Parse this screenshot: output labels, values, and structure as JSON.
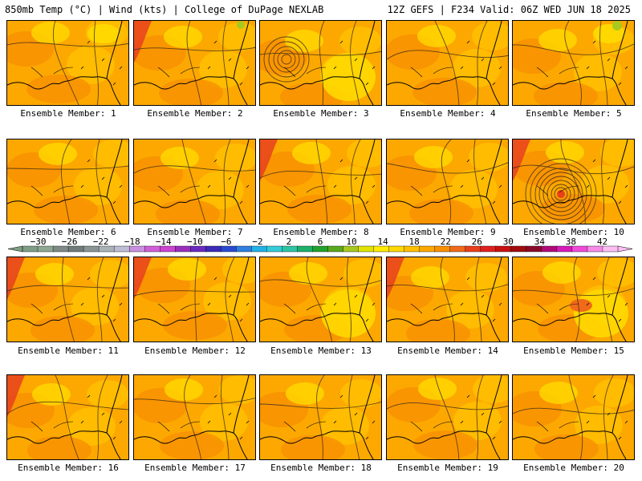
{
  "header": {
    "left": "850mb Temp (°C) | Wind (kts) | College of DuPage NEXLAB",
    "right": "12Z GEFS | F234 Valid: 06Z WED JUN 18 2025"
  },
  "colorbar": {
    "labels": [
      "−30",
      "−26",
      "−22",
      "−18",
      "−14",
      "−10",
      "−6",
      "−2",
      "2",
      "6",
      "10",
      "14",
      "18",
      "22",
      "26",
      "30",
      "34",
      "38",
      "42"
    ],
    "min": -32,
    "max": 44,
    "step": 2,
    "colors": [
      "#7f9e86",
      "#8fa894",
      "#7d8a86",
      "#707c7a",
      "#8a9593",
      "#a9b3b7",
      "#bdbdd3",
      "#c990e0",
      "#d060d8",
      "#cc44d0",
      "#9a2fbe",
      "#6a2ac0",
      "#3b2bb8",
      "#2a4ad2",
      "#2f7fe0",
      "#22b2e6",
      "#33ccd8",
      "#2dc5a4",
      "#1cb06a",
      "#22a22c",
      "#5aa81e",
      "#a8c820",
      "#e0e400",
      "#ffea00",
      "#ffd800",
      "#ffc000",
      "#fca800",
      "#f89000",
      "#f06a1a",
      "#e83f1e",
      "#e0201e",
      "#c81010",
      "#a00c0c",
      "#8a0a2a",
      "#b00a78",
      "#d81ab8",
      "#f04ad8",
      "#f78be8",
      "#fbbdf2"
    ]
  },
  "members": [
    {
      "label": "Ensemble Member: 1"
    },
    {
      "label": "Ensemble Member: 2"
    },
    {
      "label": "Ensemble Member: 3"
    },
    {
      "label": "Ensemble Member: 4"
    },
    {
      "label": "Ensemble Member: 5"
    },
    {
      "label": "Ensemble Member: 6"
    },
    {
      "label": "Ensemble Member: 7"
    },
    {
      "label": "Ensemble Member: 8"
    },
    {
      "label": "Ensemble Member: 9"
    },
    {
      "label": "Ensemble Member: 10"
    },
    {
      "label": "Ensemble Member: 11"
    },
    {
      "label": "Ensemble Member: 12"
    },
    {
      "label": "Ensemble Member: 13"
    },
    {
      "label": "Ensemble Member: 14"
    },
    {
      "label": "Ensemble Member: 15"
    },
    {
      "label": "Ensemble Member: 16"
    },
    {
      "label": "Ensemble Member: 17"
    },
    {
      "label": "Ensemble Member: 18"
    },
    {
      "label": "Ensemble Member: 19"
    },
    {
      "label": "Ensemble Member: 20"
    }
  ],
  "palette": {
    "deep": "#f06a1a",
    "mid": "#f89000",
    "base": "#fca800",
    "warm": "#ffc000",
    "light": "#ffd800",
    "yellow": "#ffea00",
    "hot": "#e83f1e",
    "green": "#a8c820"
  }
}
